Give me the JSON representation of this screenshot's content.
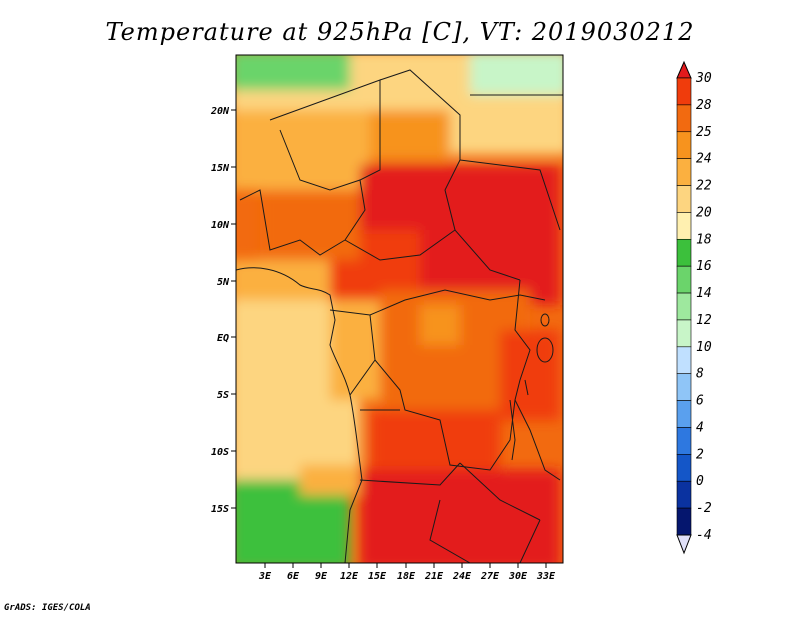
{
  "title": "Temperature at 925hPa [C], VT: 2019030212",
  "credit": "GrADS: IGES/COLA",
  "lat_labels": [
    "20N",
    "15N",
    "10N",
    "5N",
    "EQ",
    "5S",
    "10S",
    "15S"
  ],
  "lon_labels": [
    "3E",
    "6E",
    "9E",
    "12E",
    "15E",
    "18E",
    "21E",
    "24E",
    "27E",
    "30E",
    "33E"
  ],
  "colorbar": {
    "levels": [
      "30",
      "28",
      "25",
      "24",
      "22",
      "20",
      "18",
      "16",
      "14",
      "12",
      "10",
      "8",
      "6",
      "4",
      "2",
      "0",
      "-2",
      "-4"
    ],
    "colors": [
      "#e31a1c",
      "#f03c0c",
      "#f26a10",
      "#f7931e",
      "#fbb040",
      "#fdd580",
      "#fff0b0",
      "#3cc03c",
      "#6bd46b",
      "#9ee89e",
      "#c8f5c8",
      "#c0e0ff",
      "#8fc5f7",
      "#5aa0ee",
      "#2e78e0",
      "#1456c8",
      "#0a32a0",
      "#05166e",
      "#e0e0f8"
    ]
  }
}
